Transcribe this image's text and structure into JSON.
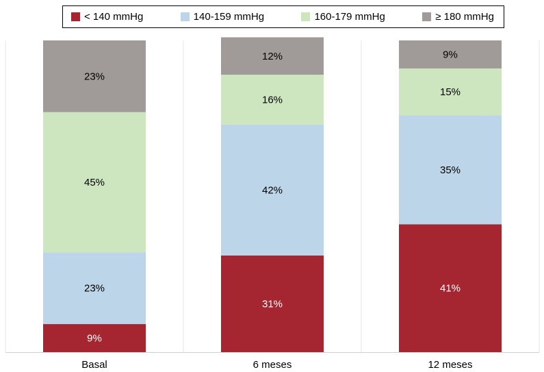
{
  "chart_data": {
    "type": "bar",
    "stacked": true,
    "categories": [
      "Basal",
      "6 meses",
      "12 meses"
    ],
    "series": [
      {
        "name": "< 140 mmHg",
        "color": "#a52631",
        "label_color": "#ffffff",
        "values": [
          9,
          31,
          41
        ],
        "labels": [
          "9%",
          "31%",
          "41%"
        ]
      },
      {
        "name": "140-159 mmHg",
        "color": "#bcd5e8",
        "label_color": "#000000",
        "values": [
          23,
          42,
          35
        ],
        "labels": [
          "23%",
          "42%",
          "35%"
        ]
      },
      {
        "name": "160-179 mmHg",
        "color": "#cde6c0",
        "label_color": "#000000",
        "values": [
          45,
          16,
          15
        ],
        "labels": [
          "45%",
          "16%",
          "15%"
        ]
      },
      {
        "name": "≥ 180 mmHg",
        "color": "#a09b98",
        "label_color": "#000000",
        "values": [
          23,
          12,
          9
        ],
        "labels": [
          "23%",
          "12%",
          "9%"
        ]
      }
    ],
    "ylim": [
      0,
      100
    ],
    "grid": false,
    "legend_position": "top"
  }
}
